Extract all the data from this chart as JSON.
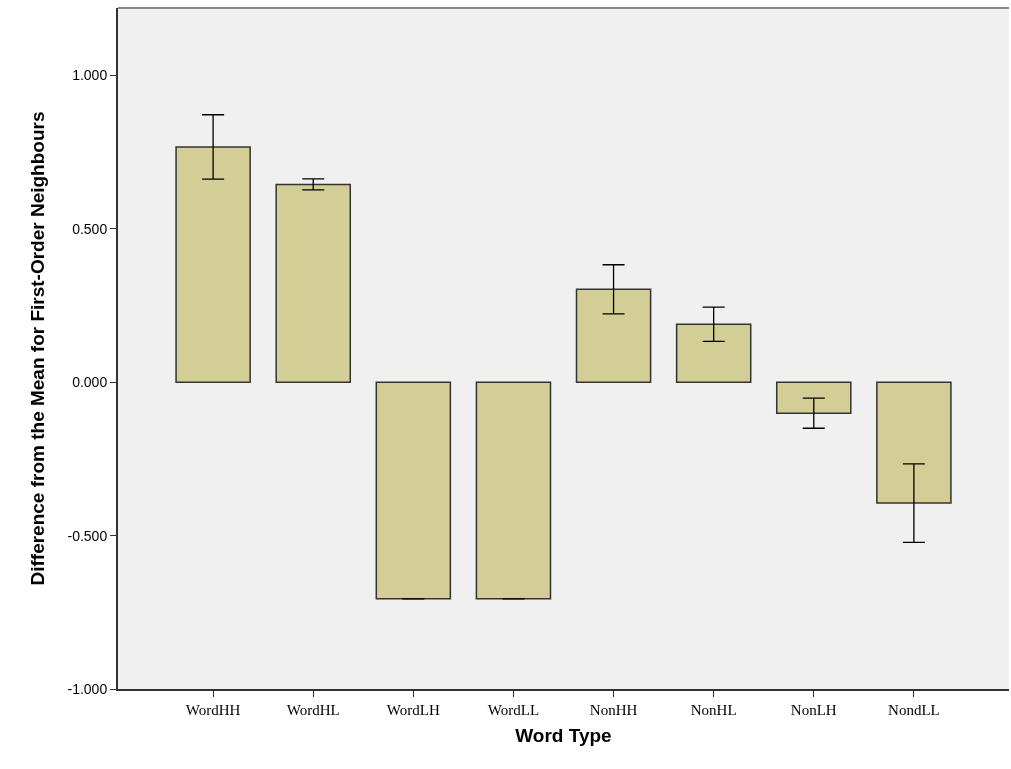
{
  "chart_data": {
    "type": "bar",
    "xlabel": "Word Type",
    "ylabel": "Difference from the Mean for First-Order Neighbours",
    "categories": [
      "WordHH",
      "WordHL",
      "WordLH",
      "WordLL",
      "NonHH",
      "NonHL",
      "NonLH",
      "NondLL"
    ],
    "values": [
      0.767,
      0.645,
      -0.706,
      -0.706,
      0.303,
      0.189,
      -0.101,
      -0.394
    ],
    "errors": [
      0.105,
      0.018,
      0,
      0,
      0.08,
      0.056,
      0.049,
      0.128
    ],
    "color": "#d3cd96",
    "ylim": [
      -1.0,
      1.22
    ],
    "yticks": [
      {
        "value": -1,
        "label": "-1.000"
      },
      {
        "value": -0.5,
        "label": "-0.500"
      },
      {
        "value": 0,
        "label": "0.000"
      },
      {
        "value": 0.5,
        "label": "0.500"
      },
      {
        "value": 1,
        "label": "1.000"
      }
    ],
    "grid": false
  }
}
